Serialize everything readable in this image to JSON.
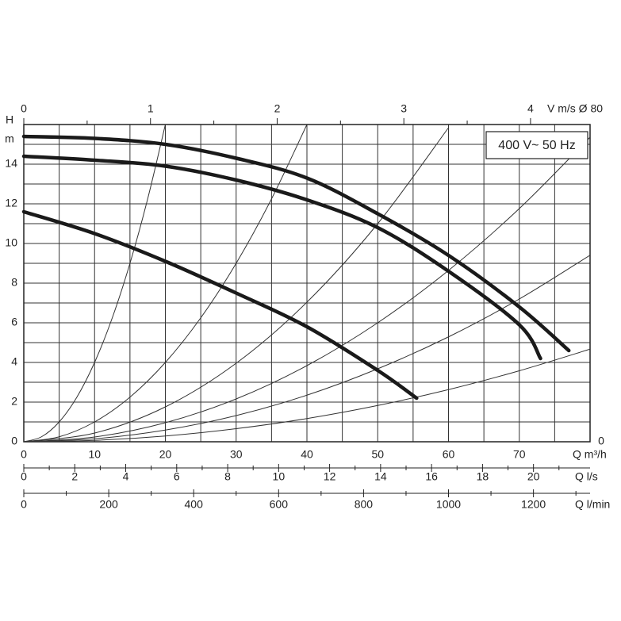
{
  "chart_data": {
    "type": "line",
    "y_label": "H",
    "y_unit": "m",
    "x_label": "Q m³/h",
    "annotation": "400 V~ 50 Hz",
    "right_label": "0",
    "xlim": [
      0,
      80
    ],
    "xticks": [
      0,
      10,
      20,
      30,
      40,
      50,
      60,
      70
    ],
    "xminor": [
      5,
      15,
      25,
      35,
      45,
      55,
      65,
      75
    ],
    "ylim": [
      0,
      16
    ],
    "yticks": [
      0,
      2,
      4,
      6,
      8,
      10,
      12,
      14
    ],
    "yminor": [
      1,
      3,
      5,
      7,
      9,
      11,
      13,
      15
    ],
    "grid": true,
    "top_axis": {
      "label": "V m/s Ø 80",
      "lim": [
        0,
        4.47
      ],
      "ticks": [
        0,
        1,
        2,
        3,
        4
      ],
      "minor": [
        0.5,
        1.5,
        2.5,
        3.5
      ]
    },
    "bottom_axes": [
      {
        "label": "Q l/s",
        "lim": [
          0,
          22.22
        ],
        "ticks": [
          0,
          2,
          4,
          6,
          8,
          10,
          12,
          14,
          16,
          18,
          20
        ],
        "minor": [
          1,
          3,
          5,
          7,
          9,
          11,
          13,
          15,
          17,
          19,
          21
        ]
      },
      {
        "label": "Q l/min",
        "lim": [
          0,
          1333.3
        ],
        "ticks": [
          0,
          200,
          400,
          600,
          800,
          1000,
          1200
        ],
        "minor": [
          100,
          300,
          500,
          700,
          900,
          1100,
          1300
        ]
      }
    ],
    "series": [
      {
        "color": "#1a1a1a",
        "x": [
          0,
          10,
          20,
          30,
          40,
          50,
          60,
          70,
          77
        ],
        "values": [
          15.4,
          15.3,
          15.0,
          14.3,
          13.3,
          11.5,
          9.4,
          6.8,
          4.6
        ]
      },
      {
        "color": "#1a1a1a",
        "x": [
          0,
          10,
          20,
          30,
          40,
          50,
          60,
          70,
          73
        ],
        "values": [
          14.4,
          14.2,
          13.9,
          13.2,
          12.2,
          10.8,
          8.6,
          5.9,
          4.2
        ]
      },
      {
        "color": "#1a1a1a",
        "x": [
          0,
          10,
          20,
          30,
          40,
          50,
          55.5
        ],
        "values": [
          11.6,
          10.5,
          9.1,
          7.5,
          5.8,
          3.6,
          2.2
        ]
      }
    ],
    "system_curves": [
      {
        "color": "#333333",
        "x": [
          0,
          2.5,
          5,
          7.5,
          10,
          12.5,
          15,
          17.5,
          20
        ],
        "values": [
          0,
          0.25,
          1,
          2.25,
          4,
          6.25,
          9,
          12.25,
          16
        ]
      },
      {
        "color": "#333333",
        "x": [
          0,
          5,
          10,
          15,
          20,
          25,
          30,
          35,
          40
        ],
        "values": [
          0,
          0.25,
          1,
          2.25,
          4,
          6.25,
          9,
          12.25,
          16
        ]
      },
      {
        "color": "#333333",
        "x": [
          0,
          10,
          20,
          30,
          40,
          50,
          60
        ],
        "values": [
          0,
          0.44,
          1.76,
          3.96,
          7.04,
          11,
          15.84
        ]
      },
      {
        "color": "#333333",
        "x": [
          0,
          10,
          20,
          30,
          40,
          50,
          60,
          70,
          80
        ],
        "values": [
          0,
          0.24,
          0.96,
          2.16,
          3.84,
          6,
          8.64,
          11.76,
          15.36
        ]
      },
      {
        "color": "#333333",
        "x": [
          0,
          10,
          20,
          30,
          40,
          50,
          60,
          70,
          80
        ],
        "values": [
          0,
          0.15,
          0.59,
          1.32,
          2.35,
          3.68,
          5.29,
          7.2,
          9.41
        ]
      },
      {
        "color": "#333333",
        "x": [
          0,
          10,
          20,
          30,
          40,
          50,
          60,
          70,
          80
        ],
        "values": [
          0,
          0.07,
          0.29,
          0.66,
          1.17,
          1.83,
          2.63,
          3.58,
          4.67
        ]
      }
    ]
  }
}
